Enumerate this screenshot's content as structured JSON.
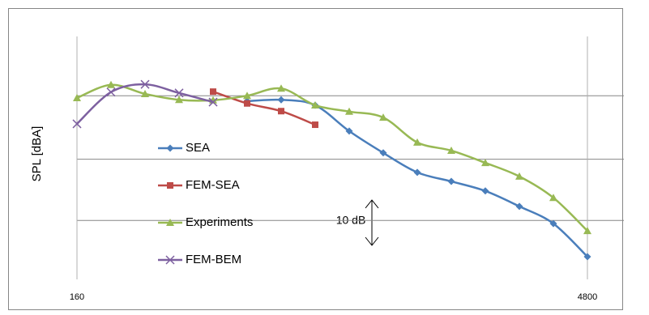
{
  "chart_data": {
    "type": "line",
    "y_label": "SPL [dBA]",
    "annotation": "10 dB",
    "categories": [
      "160",
      null,
      null,
      null,
      null,
      null,
      null,
      null,
      null,
      null,
      null,
      null,
      null,
      null,
      null,
      "4800"
    ],
    "ylim": [
      0,
      54.5
    ],
    "ygrid": [
      13,
      26.5,
      40.5
    ],
    "series": [
      {
        "name": "SEA",
        "color": "#4a7ebb",
        "marker": "diamond",
        "values": [
          null,
          null,
          null,
          null,
          null,
          39.3,
          39.6,
          38.4,
          32.7,
          27.9,
          23.6,
          21.6,
          19.5,
          16.1,
          12.3,
          5.0
        ]
      },
      {
        "name": "FEM-SEA",
        "color": "#be4b48",
        "marker": "square",
        "values": [
          null,
          null,
          null,
          null,
          41.4,
          38.8,
          37.1,
          34.1,
          null,
          null,
          null,
          null,
          null,
          null,
          null,
          null
        ]
      },
      {
        "name": "Experiments",
        "color": "#98b954",
        "marker": "triangle",
        "values": [
          40.0,
          42.9,
          40.9,
          39.6,
          39.5,
          40.5,
          42.1,
          38.4,
          37.0,
          35.7,
          30.2,
          28.4,
          25.7,
          22.7,
          18.0,
          10.7
        ]
      },
      {
        "name": "FEM-BEM",
        "color": "#7d60a0",
        "marker": "x",
        "values": [
          34.3,
          41.3,
          43.0,
          41.1,
          39.1,
          null,
          null,
          null,
          null,
          null,
          null,
          null,
          null,
          null,
          null,
          null
        ]
      }
    ]
  }
}
